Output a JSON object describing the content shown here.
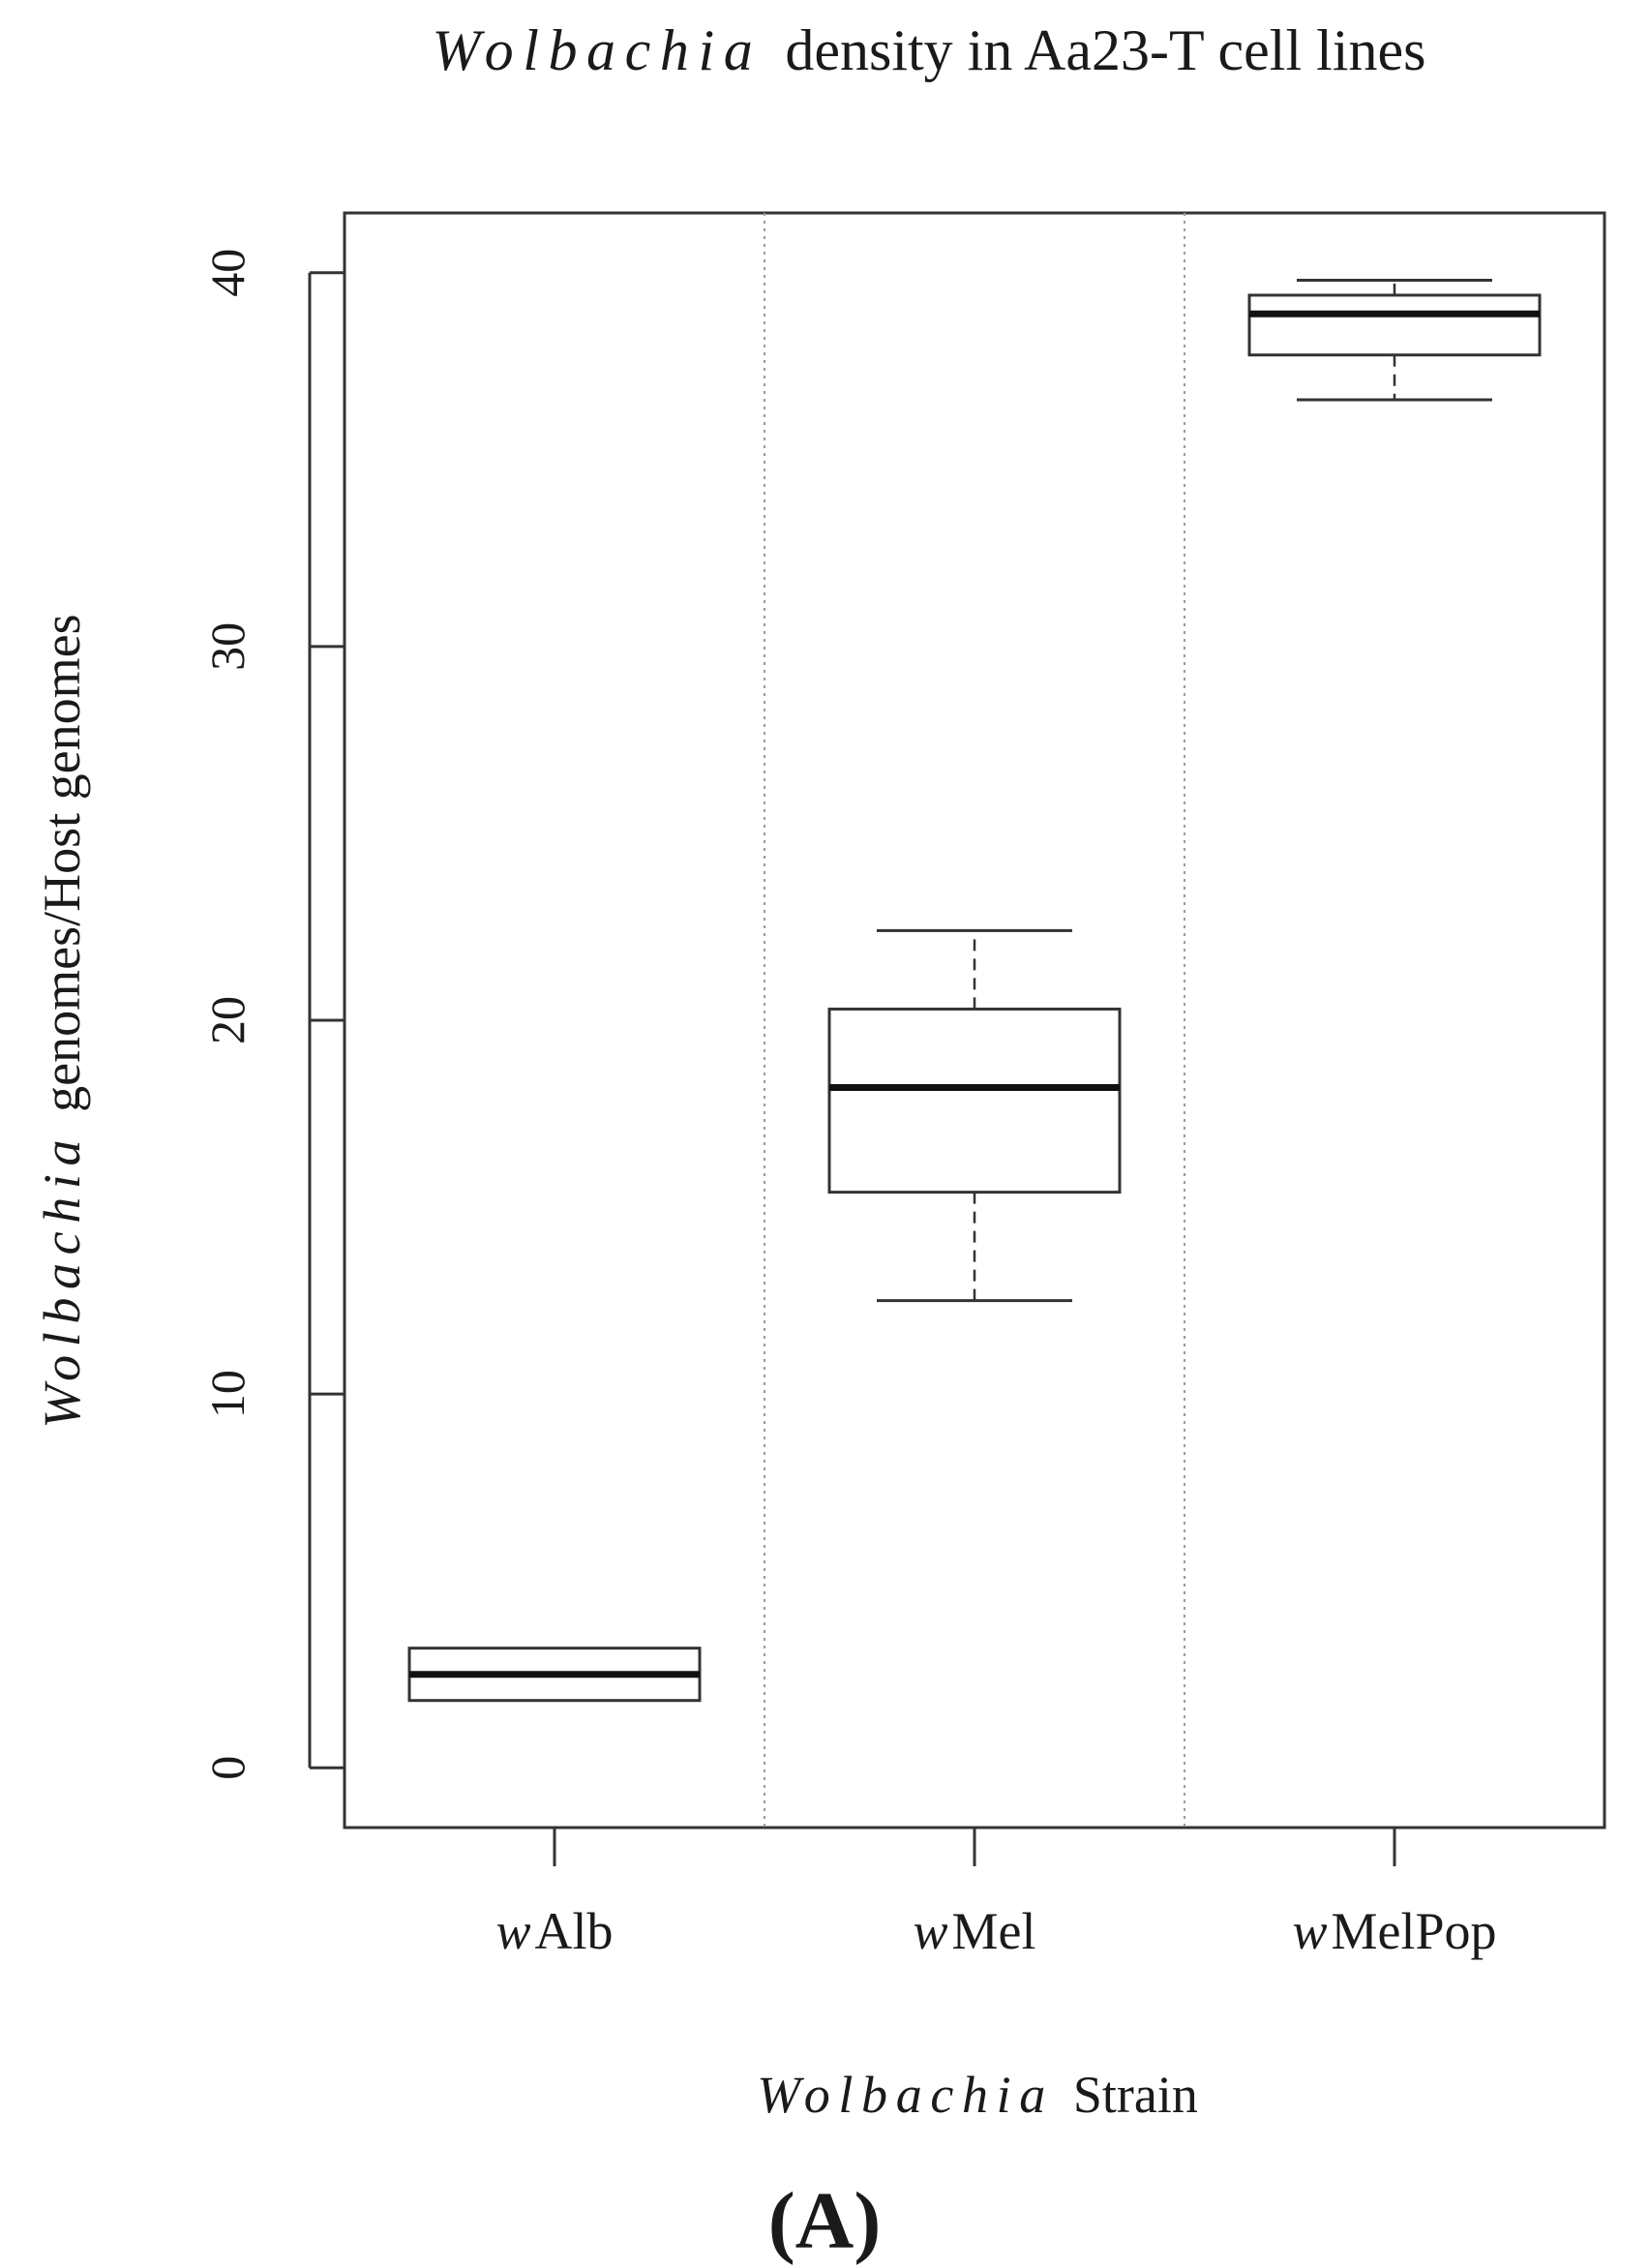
{
  "chart_data": {
    "type": "boxplot",
    "title": {
      "italic_part": "Wolbachia",
      "rest": "density in  Aa23-T cell lines"
    },
    "ylabel": {
      "italic_part": "Wolbachia",
      "rest": "genomes/Host genomes"
    },
    "xlabel": {
      "italic_part": "Wolbachia",
      "rest": "Strain"
    },
    "ylim": [
      -1.6,
      41.6
    ],
    "yticks": [
      0,
      10,
      20,
      30,
      40
    ],
    "grid": "dotted vertical separators between groups",
    "categories": [
      {
        "prefix": "w",
        "name": "Alb"
      },
      {
        "prefix": "w",
        "name": "Mel"
      },
      {
        "prefix": "w",
        "name": "MelPop"
      }
    ],
    "boxes": [
      {
        "whisker_low": 1.8,
        "q1": 1.8,
        "median": 2.5,
        "q3": 3.2,
        "whisker_high": 3.2
      },
      {
        "whisker_low": 12.5,
        "q1": 15.4,
        "median": 18.2,
        "q3": 20.3,
        "whisker_high": 22.4
      },
      {
        "whisker_low": 36.6,
        "q1": 37.8,
        "median": 38.9,
        "q3": 39.4,
        "whisker_high": 39.8
      }
    ]
  },
  "panel_label": "(A)"
}
